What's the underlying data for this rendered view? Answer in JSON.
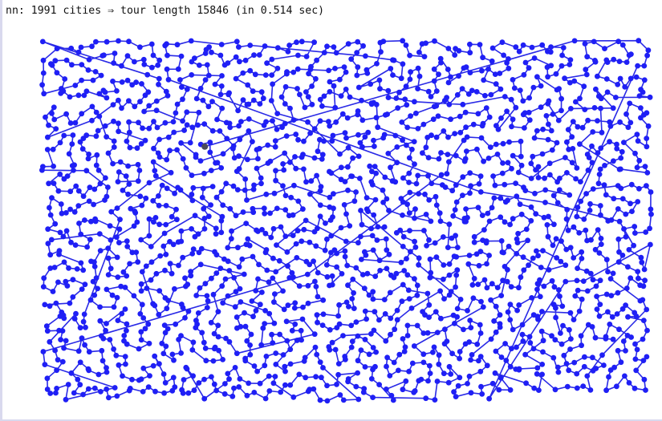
{
  "header": {
    "algorithm": "nn",
    "separator": ":",
    "city_count": "1991",
    "cities_word": "cities",
    "arrow": "⇒",
    "tour_phrase": "tour length",
    "tour_length": "15846",
    "timing": "(in 0.514 sec)"
  },
  "colors": {
    "city": "#1f1ff5",
    "tour": "#2a2ae6",
    "start_city": "#4a4a5a"
  },
  "plot": {
    "city_count": 1991,
    "x_range": [
      0,
      1
    ],
    "y_range": [
      0,
      1
    ],
    "grid": false,
    "legend": "none"
  }
}
